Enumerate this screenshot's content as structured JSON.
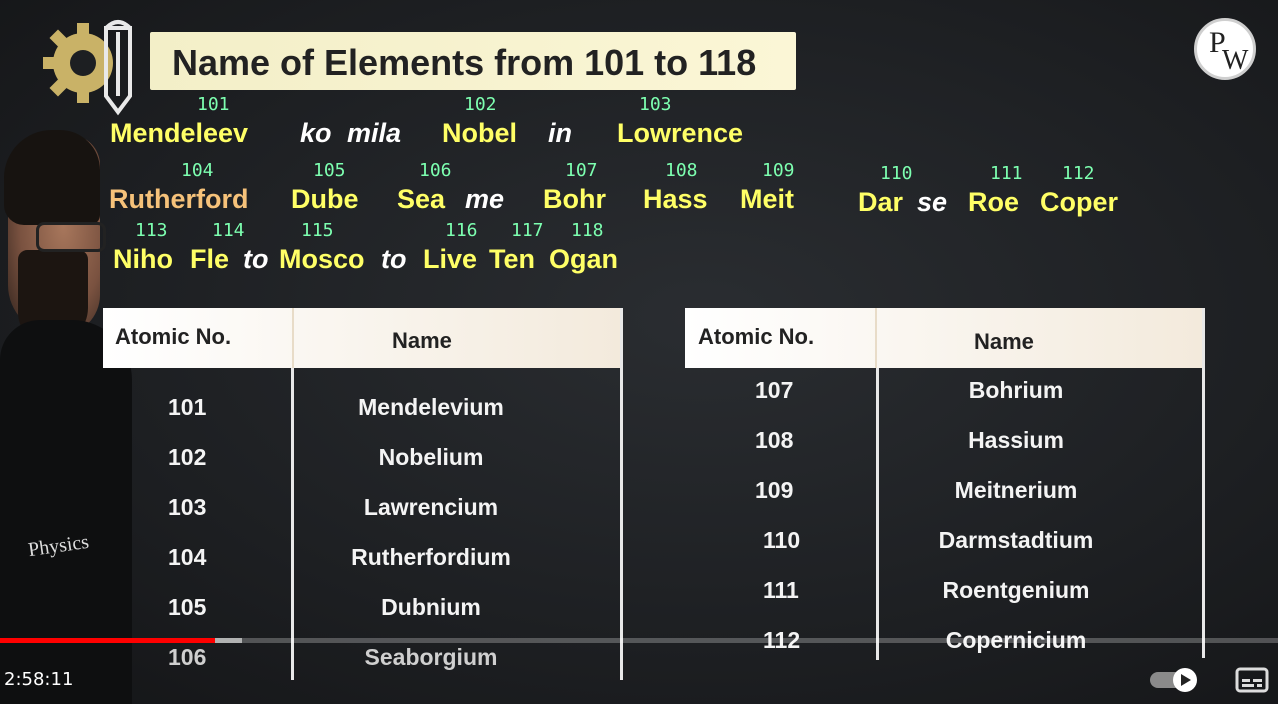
{
  "title": "Name of Elements from 101 to 118",
  "logo_text": {
    "p": "P",
    "w": "W"
  },
  "presenter_logo": "Physics",
  "mnemonic": {
    "words": [
      {
        "text": "Mendeleev",
        "num": "101",
        "style": "yellow"
      },
      {
        "text": "ko",
        "num": "",
        "style": "white"
      },
      {
        "text": "mila",
        "num": "",
        "style": "white"
      },
      {
        "text": "Nobel",
        "num": "102",
        "style": "yellow"
      },
      {
        "text": "in",
        "num": "",
        "style": "white"
      },
      {
        "text": "Lowrence",
        "num": "103",
        "style": "yellow"
      },
      {
        "text": "Rutherford",
        "num": "104",
        "style": "orange"
      },
      {
        "text": "Dube",
        "num": "105",
        "style": "yellow"
      },
      {
        "text": "Sea",
        "num": "106",
        "style": "yellow"
      },
      {
        "text": "me",
        "num": "",
        "style": "white"
      },
      {
        "text": "Bohr",
        "num": "107",
        "style": "yellow"
      },
      {
        "text": "Hass",
        "num": "108",
        "style": "yellow"
      },
      {
        "text": "Meit",
        "num": "109",
        "style": "yellow"
      },
      {
        "text": "Dar",
        "num": "110",
        "style": "yellow"
      },
      {
        "text": "se",
        "num": "",
        "style": "white"
      },
      {
        "text": "Roe",
        "num": "111",
        "style": "yellow"
      },
      {
        "text": "Coper",
        "num": "112",
        "style": "yellow"
      },
      {
        "text": "Niho",
        "num": "113",
        "style": "yellow"
      },
      {
        "text": "Fle",
        "num": "114",
        "style": "yellow"
      },
      {
        "text": "to",
        "num": "",
        "style": "white"
      },
      {
        "text": "Mosco",
        "num": "115",
        "style": "yellow"
      },
      {
        "text": "to",
        "num": "",
        "style": "white"
      },
      {
        "text": "Live",
        "num": "116",
        "style": "yellow"
      },
      {
        "text": "Ten",
        "num": "117",
        "style": "yellow"
      },
      {
        "text": "Ogan",
        "num": "118",
        "style": "yellow"
      }
    ]
  },
  "table_left": {
    "headers": [
      "Atomic No.",
      "Name"
    ],
    "rows": [
      [
        "101",
        "Mendelevium"
      ],
      [
        "102",
        "Nobelium"
      ],
      [
        "103",
        "Lawrencium"
      ],
      [
        "104",
        "Rutherfordium"
      ],
      [
        "105",
        "Dubnium"
      ],
      [
        "106",
        "Seaborgium"
      ]
    ]
  },
  "table_right": {
    "headers": [
      "Atomic No.",
      "Name"
    ],
    "rows": [
      [
        "107",
        "Bohrium"
      ],
      [
        "108",
        "Hassium"
      ],
      [
        "109",
        "Meitnerium"
      ],
      [
        "110",
        "Darmstadtium"
      ],
      [
        "111",
        "Roentgenium"
      ],
      [
        "112",
        "Copernicium"
      ]
    ]
  },
  "player": {
    "current_time": "2:58:11",
    "played_fraction": 0.168,
    "buffered_fraction": 0.189
  },
  "colors": {
    "mnemonic_yellow": "#ffff66",
    "number_green": "#7dffb0",
    "progress_red": "#ff0000"
  }
}
